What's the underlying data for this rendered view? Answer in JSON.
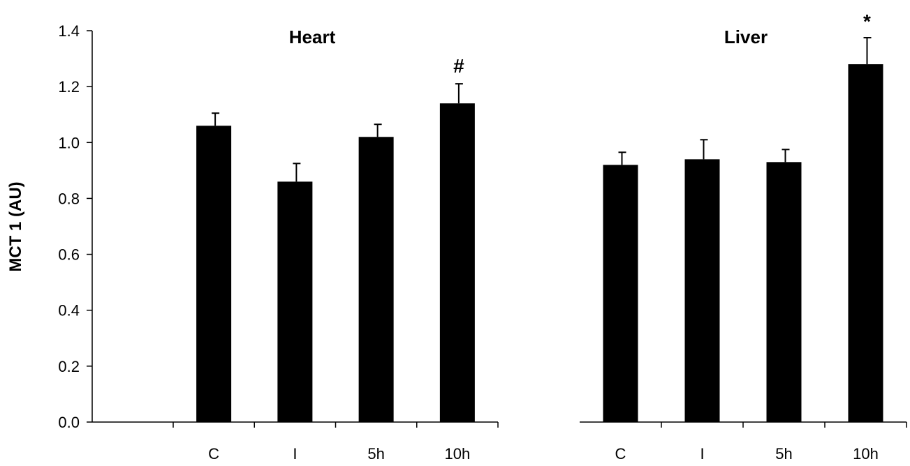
{
  "chart_data": {
    "type": "bar",
    "ylabel": "MCT 1 (AU)",
    "ylim": [
      0,
      1.4
    ],
    "yticks": [
      "0.0",
      "0.2",
      "0.4",
      "0.6",
      "0.8",
      "1.0",
      "1.2",
      "1.4"
    ],
    "grid": false,
    "bar_color": "#000000",
    "panels": [
      {
        "title": "Heart",
        "categories": [
          "C",
          "I",
          "5h",
          "10h"
        ],
        "values": [
          1.06,
          0.86,
          1.02,
          1.14
        ],
        "errors": [
          0.045,
          0.065,
          0.045,
          0.07
        ],
        "annotations": [
          "",
          "",
          "",
          "#"
        ]
      },
      {
        "title": "Liver",
        "categories": [
          "C",
          "I",
          "5h",
          "10h"
        ],
        "values": [
          0.92,
          0.94,
          0.93,
          1.28
        ],
        "errors": [
          0.045,
          0.07,
          0.045,
          0.095
        ],
        "annotations": [
          "",
          "",
          "",
          "*"
        ]
      }
    ]
  }
}
